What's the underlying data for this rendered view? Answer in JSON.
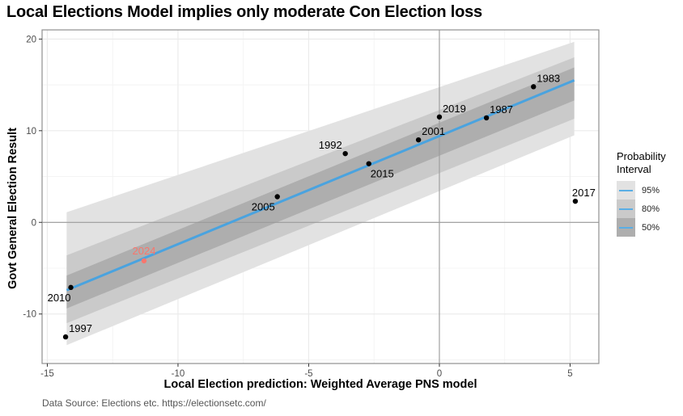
{
  "chart_data": {
    "type": "scatter",
    "title": "Local Elections Model implies only moderate Con Election loss",
    "xlabel": "Local Election prediction: Weighted Average PNS model",
    "ylabel": "Govt General Election Result",
    "caption": "Data Source: Elections etc. https://electionsetc.com/",
    "xlim": [
      -15.2,
      6.1
    ],
    "ylim": [
      -15.4,
      21.0
    ],
    "xticks": [
      -15,
      -10,
      -5,
      0,
      5
    ],
    "xtick_labels": [
      "-15",
      "-10",
      "-5",
      "0",
      "5"
    ],
    "yticks": [
      -10,
      0,
      10,
      20
    ],
    "ytick_labels": [
      "-10",
      "0",
      "10",
      "20"
    ],
    "grid": true,
    "reference_lines": {
      "x": 0,
      "y": 0
    },
    "points": [
      {
        "label": "1983",
        "x": 3.6,
        "y": 14.8,
        "highlight": false
      },
      {
        "label": "1987",
        "x": 1.8,
        "y": 11.4,
        "highlight": false
      },
      {
        "label": "1992",
        "x": -3.6,
        "y": 7.5,
        "highlight": false
      },
      {
        "label": "1997",
        "x": -14.3,
        "y": -12.5,
        "highlight": false
      },
      {
        "label": "2001",
        "x": -0.8,
        "y": 9.0,
        "highlight": false
      },
      {
        "label": "2005",
        "x": -6.2,
        "y": 2.8,
        "highlight": false
      },
      {
        "label": "2010",
        "x": -14.1,
        "y": -7.1,
        "highlight": false
      },
      {
        "label": "2015",
        "x": -2.7,
        "y": 6.4,
        "highlight": false
      },
      {
        "label": "2017",
        "x": 5.2,
        "y": 2.3,
        "highlight": false
      },
      {
        "label": "2019",
        "x": 0.0,
        "y": 11.5,
        "highlight": false
      },
      {
        "label": "2024",
        "x": -11.3,
        "y": -4.2,
        "highlight": true
      }
    ],
    "fit_line": {
      "x": [
        -14.26,
        5.16
      ],
      "y": [
        -7.4,
        15.5
      ]
    },
    "intervals": [
      {
        "name": "95%",
        "x": [
          -14.26,
          5.16
        ],
        "lower": [
          -13.4,
          9.5
        ],
        "upper": [
          1.1,
          19.7
        ]
      },
      {
        "name": "80%",
        "x": [
          -14.26,
          5.16
        ],
        "lower": [
          -11.0,
          11.3
        ],
        "upper": [
          -3.6,
          18.0
        ]
      },
      {
        "name": "50%",
        "x": [
          -14.26,
          5.16
        ],
        "lower": [
          -9.4,
          13.3
        ],
        "upper": [
          -5.8,
          16.9
        ]
      }
    ],
    "legend": {
      "title": "Probability Interval",
      "position": "right",
      "entries": [
        "95%",
        "80%",
        "50%"
      ]
    },
    "colors": {
      "fit_line": "#4aa3df",
      "band_95": "#e2e2e2",
      "band_80": "#cacaca",
      "band_50": "#aeaeae",
      "point": "#000000",
      "highlight": "#f8766d"
    }
  }
}
